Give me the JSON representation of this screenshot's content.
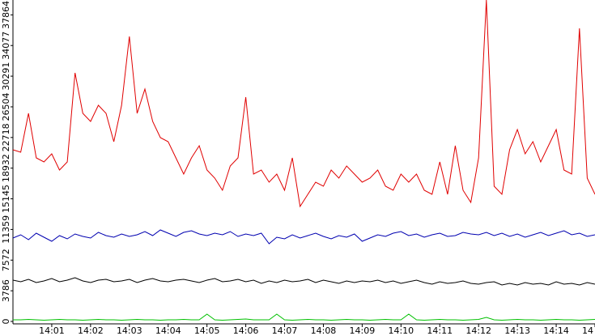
{
  "chart_data": {
    "type": "line",
    "categories": [
      null,
      null,
      null,
      null,
      null,
      "14:01",
      null,
      null,
      null,
      null,
      "14:02",
      null,
      null,
      null,
      null,
      "14:03",
      null,
      null,
      null,
      null,
      "14:04",
      null,
      null,
      null,
      null,
      "14:05",
      null,
      null,
      null,
      null,
      "14:06",
      null,
      null,
      null,
      null,
      "14:07",
      null,
      null,
      null,
      null,
      "14:08",
      null,
      null,
      null,
      null,
      "14:09",
      null,
      null,
      null,
      null,
      "14:10",
      null,
      null,
      null,
      null,
      "14:11",
      null,
      null,
      null,
      null,
      "14:12",
      null,
      null,
      null,
      null,
      "14:13",
      null,
      null,
      null,
      null,
      "14:14",
      null,
      null,
      null,
      null,
      "14"
    ],
    "series": [
      {
        "color": "#e00000",
        "values": [
          21200,
          20900,
          25700,
          20200,
          19700,
          20700,
          18700,
          19700,
          30700,
          25700,
          24700,
          26700,
          25700,
          22200,
          26700,
          35200,
          25700,
          28700,
          24700,
          22700,
          22200,
          20200,
          18200,
          20200,
          21700,
          18700,
          17700,
          16200,
          19200,
          20200,
          27700,
          18200,
          18700,
          17200,
          18200,
          16200,
          20200,
          14200,
          15700,
          17200,
          16700,
          18700,
          17700,
          19200,
          18200,
          17200,
          17700,
          18700,
          16700,
          16200,
          18200,
          17200,
          18200,
          16200,
          15700,
          19700,
          15700,
          21700,
          16200,
          14700,
          20200,
          39700,
          16700,
          15700,
          21200,
          23700,
          20700,
          22200,
          19700,
          21700,
          23700,
          18700,
          18200,
          36200,
          17700,
          15700
        ]
      },
      {
        "color": "#0000b0",
        "values": [
          10300,
          10700,
          10100,
          10900,
          10400,
          9900,
          10600,
          10200,
          10800,
          10500,
          10300,
          11000,
          10600,
          10400,
          10800,
          10500,
          10700,
          11100,
          10600,
          11300,
          10900,
          10500,
          11000,
          11200,
          10800,
          10600,
          10900,
          10700,
          11100,
          10500,
          10800,
          10600,
          10900,
          9600,
          10400,
          10200,
          10700,
          10300,
          10600,
          10900,
          10500,
          10200,
          10600,
          10400,
          10800,
          9900,
          10300,
          10700,
          10500,
          10900,
          11100,
          10600,
          10800,
          10400,
          10700,
          10900,
          10500,
          10600,
          11000,
          10800,
          10700,
          11000,
          10600,
          10900,
          10500,
          10800,
          10400,
          10700,
          11000,
          10600,
          10900,
          11200,
          10700,
          10900,
          10500,
          10700
        ]
      },
      {
        "color": "#000000",
        "values": [
          5100,
          4900,
          5200,
          4800,
          5000,
          5300,
          4900,
          5100,
          5400,
          5000,
          4800,
          5100,
          5200,
          4900,
          5000,
          5200,
          4800,
          5100,
          5300,
          5000,
          4900,
          5100,
          5200,
          5000,
          4800,
          5100,
          5300,
          4900,
          5000,
          5200,
          4900,
          5100,
          4700,
          5000,
          4800,
          5100,
          4900,
          5000,
          5200,
          4800,
          5100,
          4900,
          4700,
          5000,
          4800,
          5000,
          4900,
          5100,
          4800,
          5000,
          4700,
          4900,
          5100,
          4800,
          4600,
          4900,
          4700,
          4800,
          5000,
          4700,
          4600,
          4800,
          4900,
          4500,
          4700,
          4500,
          4800,
          4600,
          4700,
          4500,
          4900,
          4600,
          4700,
          4500,
          4800,
          4600
        ]
      },
      {
        "color": "#00c000",
        "values": [
          200,
          200,
          250,
          200,
          150,
          200,
          250,
          200,
          200,
          150,
          200,
          250,
          200,
          200,
          150,
          200,
          250,
          200,
          200,
          150,
          200,
          200,
          250,
          200,
          200,
          900,
          200,
          150,
          200,
          250,
          300,
          200,
          200,
          200,
          900,
          200,
          150,
          200,
          250,
          200,
          200,
          150,
          200,
          250,
          200,
          200,
          150,
          200,
          250,
          200,
          200,
          900,
          200,
          150,
          200,
          250,
          200,
          200,
          150,
          200,
          250,
          500,
          200,
          150,
          200,
          250,
          200,
          200,
          150,
          200,
          250,
          200,
          200,
          150,
          200,
          250
        ]
      }
    ],
    "ylim": [
      -300,
      39700
    ],
    "yticks": [
      0,
      3786,
      7572,
      11359,
      15145,
      18932,
      22718,
      26504,
      30291,
      34077,
      37864
    ]
  }
}
